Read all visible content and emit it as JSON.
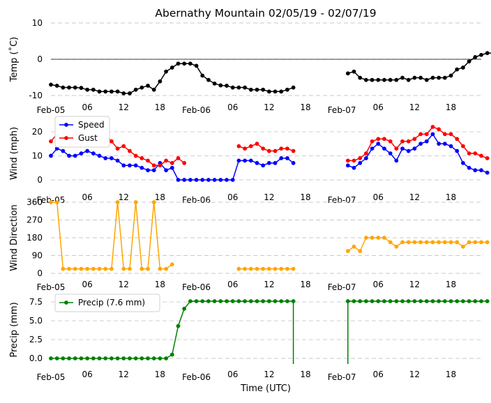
{
  "colors": {
    "temp": "#000000",
    "speed": "#0000ff",
    "gust": "#ff0000",
    "direction": "#ffa500",
    "precip": "#008000",
    "grid": "#c8c8c8"
  },
  "chart_data": [
    {
      "type": "line",
      "id": "temp",
      "title": "Abernathy Mountain 02/05/19 - 02/07/19",
      "xlabel": "",
      "ylabel": "Temp (˚C)",
      "x_range_hours": [
        0,
        71
      ],
      "ylim": [
        -10,
        10
      ],
      "yticks": [
        -10,
        0,
        10
      ],
      "zero_line": true,
      "x_tick_labels": [
        "Feb-05",
        "06",
        "12",
        "18",
        "Feb-06",
        "06",
        "12",
        "18",
        "Feb-07",
        "06",
        "12",
        "18"
      ],
      "series": [
        {
          "name": "Temp",
          "color_key": "temp",
          "values": [
            -7,
            -7.3,
            -7.8,
            -7.8,
            -7.8,
            -7.9,
            -8.4,
            -8.4,
            -8.9,
            -8.9,
            -8.9,
            -8.9,
            -9.4,
            -9.4,
            -8.4,
            -7.8,
            -7.3,
            -8.4,
            -6.1,
            -3.4,
            -2.3,
            -1.2,
            -1.2,
            -1.2,
            -1.8,
            -4.5,
            -5.7,
            -6.7,
            -7.2,
            -7.3,
            -7.8,
            -7.8,
            -7.8,
            -8.4,
            -8.4,
            -8.4,
            -8.9,
            -8.9,
            -8.9,
            -8.4,
            -7.8,
            null,
            null,
            null,
            null,
            null,
            null,
            null,
            null,
            -3.9,
            -3.4,
            -5.1,
            -5.7,
            -5.7,
            -5.7,
            -5.7,
            -5.7,
            -5.7,
            -5.1,
            -5.7,
            -5.1,
            -5.1,
            -5.7,
            -5.1,
            -5.1,
            -5.1,
            -4.5,
            -2.8,
            -2.3,
            -0.6,
            0.6,
            1.2,
            1.7,
            1.7
          ]
        }
      ]
    },
    {
      "type": "line",
      "id": "wind",
      "xlabel": "",
      "ylabel": "Wind (mph)",
      "x_range_hours": [
        0,
        71
      ],
      "ylim": [
        0,
        22
      ],
      "yticks": [
        0,
        10,
        20
      ],
      "x_tick_labels": [
        "Feb-05",
        "06",
        "12",
        "18",
        "Feb-06",
        "06",
        "12",
        "18",
        "Feb-07",
        "06",
        "12",
        "18"
      ],
      "legend": {
        "placement": "top-left",
        "entries": [
          "Speed",
          "Gust"
        ]
      },
      "series": [
        {
          "name": "Speed",
          "color_key": "speed",
          "values": [
            10,
            13,
            12,
            10,
            10,
            11,
            12,
            11,
            10,
            9,
            9,
            8,
            6,
            6,
            6,
            5,
            4,
            4,
            7,
            4,
            5,
            0,
            0,
            0,
            0,
            0,
            0,
            0,
            0,
            0,
            0,
            8,
            8,
            8,
            7,
            6,
            7,
            7,
            9,
            9,
            7,
            null,
            null,
            null,
            null,
            null,
            null,
            null,
            null,
            6,
            5,
            7,
            9,
            13,
            15,
            13,
            11,
            8,
            13,
            12,
            13,
            15,
            16,
            19,
            15,
            15,
            14,
            12,
            7,
            5,
            4,
            4,
            3
          ]
        },
        {
          "name": "Gust",
          "color_key": "gust",
          "values": [
            16,
            19,
            21,
            18,
            21,
            20,
            18,
            17,
            19,
            19,
            16,
            13,
            14,
            12,
            10,
            9,
            8,
            6,
            6,
            8,
            7,
            9,
            7,
            null,
            null,
            null,
            null,
            null,
            null,
            null,
            null,
            14,
            13,
            14,
            15,
            13,
            12,
            12,
            13,
            13,
            12,
            null,
            null,
            null,
            null,
            null,
            null,
            null,
            null,
            8,
            8,
            9,
            11,
            16,
            17,
            17,
            16,
            13,
            16,
            16,
            17,
            19,
            19,
            22,
            21,
            19,
            19,
            17,
            14,
            11,
            11,
            10,
            9
          ]
        }
      ]
    },
    {
      "type": "line",
      "id": "direction",
      "xlabel": "",
      "ylabel": "Wind Direction",
      "x_range_hours": [
        0,
        71
      ],
      "ylim": [
        0,
        360
      ],
      "yticks": [
        0,
        90,
        180,
        270,
        360
      ],
      "x_tick_labels": [
        "Feb-05",
        "06",
        "12",
        "18",
        "Feb-06",
        "06",
        "12",
        "18",
        "Feb-07",
        "06",
        "12",
        "18"
      ],
      "series": [
        {
          "name": "Direction",
          "color_key": "direction",
          "values": [
            360,
            360,
            22.5,
            22.5,
            22.5,
            22.5,
            22.5,
            22.5,
            22.5,
            22.5,
            22.5,
            360,
            22.5,
            22.5,
            360,
            22.5,
            22.5,
            360,
            22.5,
            22.5,
            45,
            null,
            null,
            null,
            null,
            null,
            null,
            null,
            null,
            null,
            null,
            22.5,
            22.5,
            22.5,
            22.5,
            22.5,
            22.5,
            22.5,
            22.5,
            22.5,
            22.5,
            null,
            null,
            null,
            null,
            null,
            null,
            null,
            null,
            112.5,
            135,
            112.5,
            180,
            180,
            180,
            180,
            157.5,
            135,
            157.5,
            157.5,
            157.5,
            157.5,
            157.5,
            157.5,
            157.5,
            157.5,
            157.5,
            157.5,
            135,
            157.5,
            157.5,
            157.5,
            157.5
          ]
        }
      ]
    },
    {
      "type": "line",
      "id": "precip",
      "xlabel": "Time (UTC)",
      "ylabel": "Precip (mm)",
      "x_range_hours": [
        0,
        71
      ],
      "ylim": [
        0,
        7.6
      ],
      "yticks": [
        0.0,
        2.5,
        5.0,
        7.5
      ],
      "ytick_labels": [
        "0.0",
        "2.5",
        "5.0",
        "7.5"
      ],
      "x_tick_labels": [
        "Feb-05",
        "06",
        "12",
        "18",
        "Feb-06",
        "06",
        "12",
        "18",
        "Feb-07",
        "06",
        "12",
        "18"
      ],
      "legend": {
        "placement": "top-left",
        "entries": [
          "Precip (7.6 mm)"
        ]
      },
      "series": [
        {
          "name": "Precip (7.6 mm)",
          "color_key": "precip",
          "values": [
            0,
            0,
            0,
            0,
            0,
            0,
            0,
            0,
            0,
            0,
            0,
            0,
            0,
            0,
            0,
            0,
            0,
            0,
            0,
            0,
            0.5,
            4.3,
            6.6,
            7.6,
            7.6,
            7.6,
            7.6,
            7.6,
            7.6,
            7.6,
            7.6,
            7.6,
            7.6,
            7.6,
            7.6,
            7.6,
            7.6,
            7.6,
            7.6,
            7.6,
            7.6,
            null,
            null,
            null,
            null,
            null,
            null,
            null,
            null,
            7.6,
            7.6,
            7.6,
            7.6,
            7.6,
            7.6,
            7.6,
            7.6,
            7.6,
            7.6,
            7.6,
            7.6,
            7.6,
            7.6,
            7.6,
            7.6,
            7.6,
            7.6,
            7.6,
            7.6,
            7.6,
            7.6,
            7.6,
            7.6
          ],
          "drop_to_floor_at_gaps": true
        }
      ]
    }
  ]
}
